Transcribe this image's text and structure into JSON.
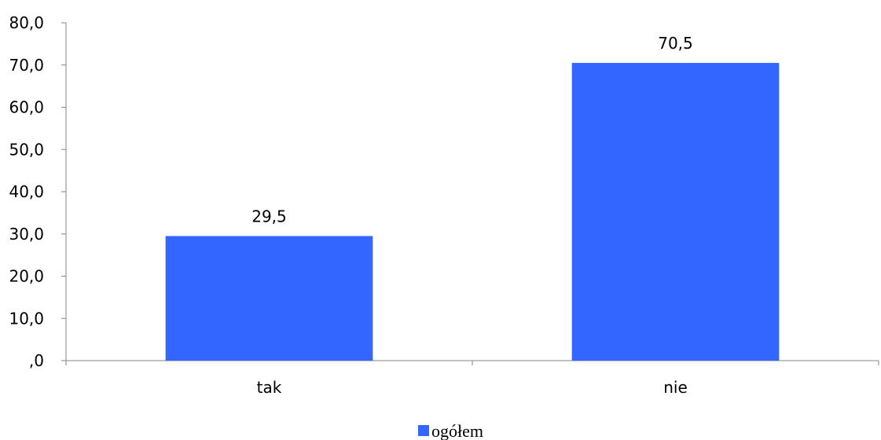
{
  "chart_data": {
    "type": "bar",
    "categories": [
      "tak",
      "nie"
    ],
    "series": [
      {
        "name": "ogółem",
        "values": [
          29.5,
          70.5
        ],
        "value_labels": [
          "29,5",
          "70,5"
        ],
        "color": "#3366FF"
      }
    ],
    "y_tick_labels": [
      ",0",
      "10,0",
      "20,0",
      "30,0",
      "40,0",
      "50,0",
      "60,0",
      "70,0",
      "80,0"
    ],
    "y_ticks": [
      0,
      10,
      20,
      30,
      40,
      50,
      60,
      70,
      80
    ],
    "ylim": [
      0,
      80
    ],
    "grid": false,
    "legend_position": "bottom-center",
    "title": "",
    "xlabel": "",
    "ylabel": ""
  }
}
